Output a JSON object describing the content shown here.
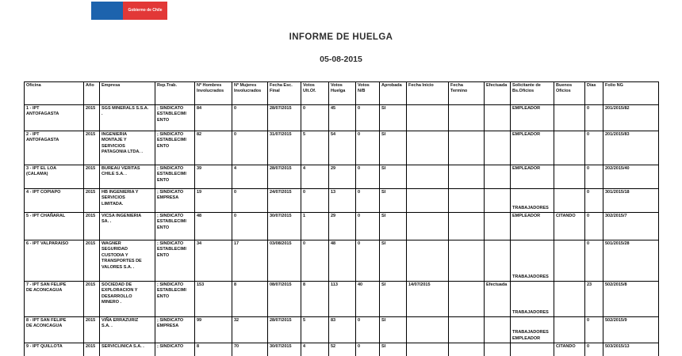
{
  "logo": {
    "label": "Gobierno de Chile",
    "blue_color": "#1d63ad",
    "red_color": "#e23837"
  },
  "header": {
    "title": "INFORME DE HUELGA",
    "date": "05-08-2015"
  },
  "table": {
    "columns": [
      "Oficina",
      "Año",
      "Empresa",
      "Rep.Trab.",
      "Nº Hombres\nInvolucrados",
      "Nº Mujeres\nInvolucrados",
      "Fecha Esc.\nFinal",
      "Votos\nUlt.Of.",
      "Votos\nHuelga",
      "Votos N/B",
      "Aprobada",
      "Fecha Inicio",
      "Fecha\nTermino",
      "Efectuada",
      "Solicitante de\nBs.Oficios",
      "Buenos\nOficios",
      "Días",
      "Folio NG"
    ],
    "rows": [
      [
        "1 - IPT\nANTOFAGASTA",
        "2015",
        "SGS MINERALS S.S.A.\n.",
        "; SINDICATO\nESTABLECIMI\nENTO",
        "84",
        "0",
        "28/07/2015",
        "0",
        "45",
        "0",
        "SI",
        "",
        "",
        "",
        "EMPLEADOR",
        "",
        "0",
        "201/2015/82"
      ],
      [
        "2 - IPT\nANTOFAGASTA",
        "2015",
        "INGENIERIA\nMONTAJE Y\nSERVICIOS\nPATAGONIA LTDA. .",
        "; SINDICATO\nESTABLECIMI\nENTO",
        "82",
        "0",
        "31/07/2015",
        "5",
        "54",
        "0",
        "SI",
        "",
        "",
        "",
        "EMPLEADOR",
        "",
        "0",
        "201/2015/83"
      ],
      [
        "3 - IPT EL LOA\n(CALAMA)",
        "2015",
        "BUREAU VERITAS\nCHILE S.A. .",
        "; SINDICATO\nESTABLECIMI\nENTO",
        "39",
        "4",
        "28/07/2015",
        "4",
        "29",
        "0",
        "SI",
        "",
        "",
        "",
        "EMPLEADOR",
        "",
        "0",
        "202/2015/40"
      ],
      [
        "4 - IPT COPIAPO",
        "2015",
        "HB INGENIERIA Y\nSERVICIOS\nLIMITADA.",
        "; SINDICATO\nEMPRESA",
        "19",
        "0",
        "24/07/2015",
        "0",
        "13",
        "0",
        "SI",
        "",
        "",
        "",
        "\nTRABAJADORES",
        "",
        "0",
        "301/2015/18"
      ],
      [
        "5 - IPT CHAÑARAL",
        "2015",
        "VICSA INGENIERIA\nSA. .",
        "; SINDICATO\nESTABLECIMI\nENTO",
        "48",
        "0",
        "30/07/2015",
        "1",
        "29",
        "0",
        "SI",
        "",
        "",
        "",
        "EMPLEADOR",
        "CITANDO",
        "0",
        "302/2015/7"
      ],
      [
        "6 - IPT VALPARAISO",
        "2015",
        "WAGNER\nSEGURIDAD\nCUSTODIA Y\nTRANSPORTES DE\nVALORES S.A. .",
        "; SINDICATO\nESTABLECIMI\nENTO",
        "34",
        "17",
        "03/08/2015",
        "0",
        "48",
        "0",
        "SI",
        "",
        "",
        "",
        "\nTRABAJADORES",
        "",
        "0",
        "501/2015/28"
      ],
      [
        "7 - IPT SAN FELIPE\nDE ACONCAGUA",
        "2015",
        "SOCIEDAD DE\nEXPLORACION Y\nDESARROLLO\nMINERO .",
        "; SINDICATO\nESTABLECIMI\nENTO",
        "153",
        "8",
        "08/07/2015",
        "8",
        "113",
        "40",
        "SI",
        "14/07/2015",
        "",
        "Efectuada",
        "\nTRABAJADORES",
        "",
        "23",
        "502/2015/8"
      ],
      [
        "8 - IPT SAN FELIPE\nDE ACONCAGUA",
        "2015",
        "VIÑA ERRAZURIZ\nS.A. .",
        "; SINDICATO\nEMPRESA",
        "99",
        "32",
        "28/07/2015",
        "5",
        "83",
        "0",
        "SI",
        "",
        "",
        "",
        "\nTRABAJADORES\nEMPLEADOR",
        "",
        "0",
        "502/2015/9"
      ],
      [
        "9 - IPT QUILLOTA",
        "2015",
        "SERVICLINICA S.A. .",
        "; SINDICATO",
        "8",
        "70",
        "30/07/2015",
        "4",
        "52",
        "0",
        "SI",
        "",
        "",
        "",
        "",
        "CITANDO",
        "0",
        "503/2015/13"
      ]
    ]
  }
}
